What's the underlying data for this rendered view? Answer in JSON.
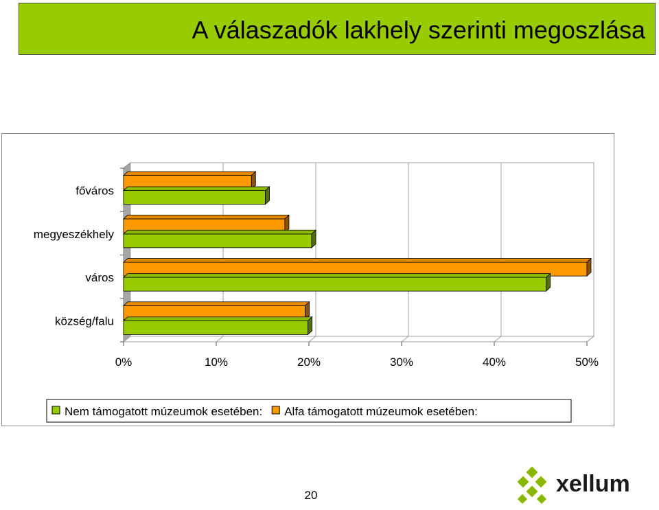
{
  "slide": {
    "title": "A válaszadók lakhely szerinti megoszlása",
    "page_number": "20",
    "logo_text": "xellum"
  },
  "chart_data": {
    "type": "bar",
    "orientation": "horizontal",
    "categories": [
      "főváros",
      "megyeszékhely",
      "város",
      "község/falu"
    ],
    "series": [
      {
        "name": "Nem támogatott múzeumok esetében:",
        "color": "#99cc00",
        "values": [
          15.3,
          20.3,
          45.6,
          19.9
        ]
      },
      {
        "name": "Alfa támogatott múzeumok esetében:",
        "color": "#ff9900",
        "values": [
          13.8,
          17.4,
          50.0,
          19.6
        ]
      }
    ],
    "x_ticks": [
      "0%",
      "10%",
      "20%",
      "30%",
      "40%",
      "50%"
    ],
    "xlim": [
      0,
      50
    ],
    "unit": "%",
    "grid": true,
    "legend_position": "bottom",
    "style": "3d"
  }
}
